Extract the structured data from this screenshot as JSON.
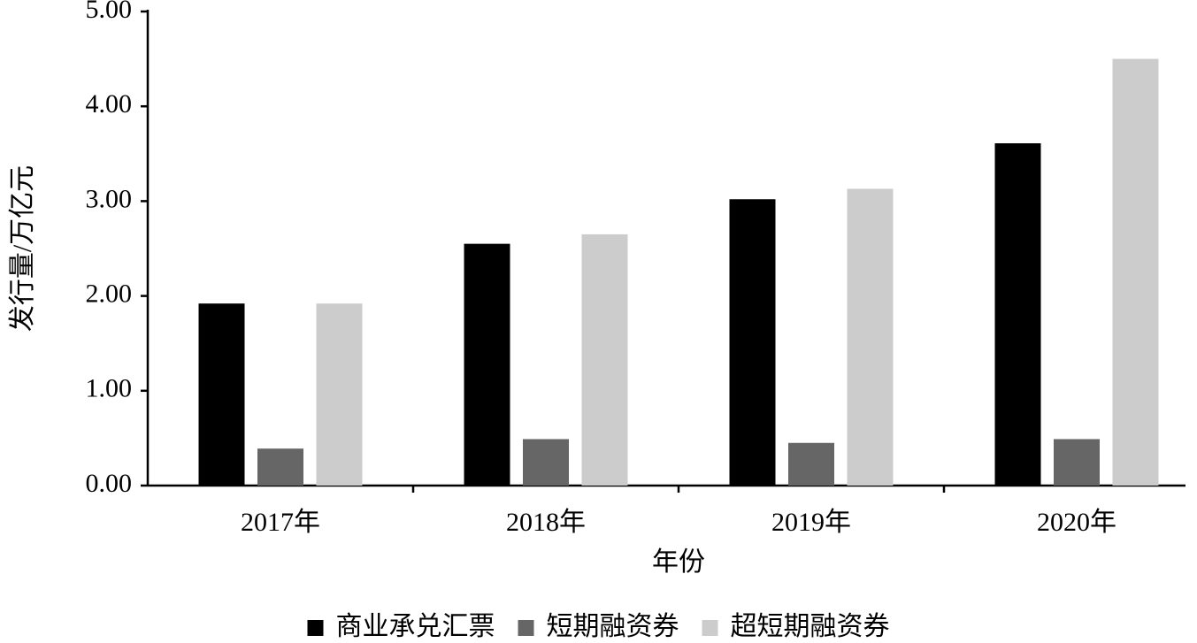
{
  "chart_data": {
    "type": "bar",
    "y_label": "发行量/万亿元",
    "x_label": "年份",
    "categories": [
      "2017年",
      "2018年",
      "2019年",
      "2020年"
    ],
    "series": [
      {
        "name": "商业承兑汇票",
        "color": "#000000",
        "values": [
          1.92,
          2.55,
          3.02,
          3.61
        ]
      },
      {
        "name": "短期融资券",
        "color": "#666666",
        "values": [
          0.39,
          0.49,
          0.45,
          0.49
        ]
      },
      {
        "name": "超短期融资券",
        "color": "#cccccc",
        "values": [
          1.92,
          2.65,
          3.13,
          4.5
        ]
      }
    ],
    "ylim": [
      0,
      5
    ],
    "yticks": [
      {
        "value": 0,
        "label": "0.00"
      },
      {
        "value": 1,
        "label": "1.00"
      },
      {
        "value": 2,
        "label": "2.00"
      },
      {
        "value": 3,
        "label": "3.00"
      },
      {
        "value": 4,
        "label": "4.00"
      },
      {
        "value": 5,
        "label": "5.00"
      }
    ],
    "grid": false,
    "legend": "bottom"
  }
}
